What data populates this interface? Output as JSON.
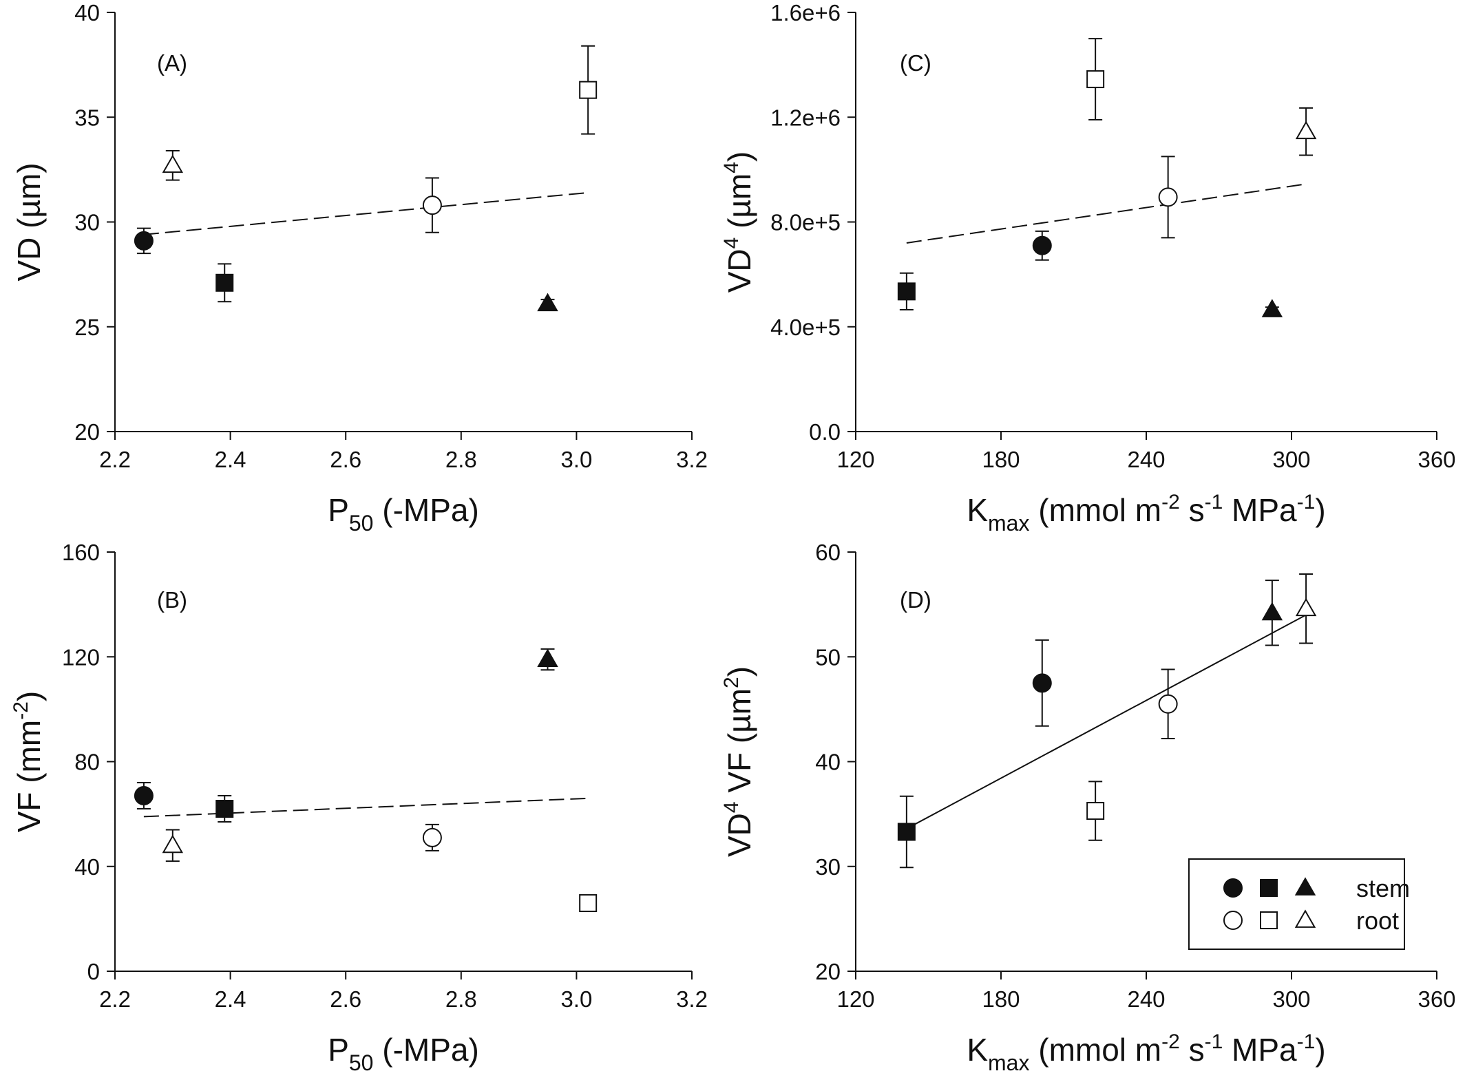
{
  "chart_data": [
    {
      "type": "scatter",
      "panel_label": "(A)",
      "xlabel": {
        "main": "P",
        "sub": "50",
        "rest": " (-MPa)"
      },
      "ylabel": "VD (µm)",
      "xlim": [
        2.2,
        3.2
      ],
      "ylim": [
        20,
        40
      ],
      "xticks": [
        "2.2",
        "2.4",
        "2.6",
        "2.8",
        "3.0",
        "3.2"
      ],
      "yticks": [
        "20",
        "25",
        "30",
        "35",
        "40"
      ],
      "points": [
        {
          "group": "stem",
          "marker": "circle",
          "x": 2.25,
          "y": 29.1,
          "err": 0.6
        },
        {
          "group": "stem",
          "marker": "square",
          "x": 2.39,
          "y": 27.1,
          "err": 0.9
        },
        {
          "group": "stem",
          "marker": "triangle",
          "x": 2.95,
          "y": 26.1,
          "err": 0.2
        },
        {
          "group": "root",
          "marker": "circle",
          "x": 2.75,
          "y": 30.8,
          "err": 1.3
        },
        {
          "group": "root",
          "marker": "square",
          "x": 3.02,
          "y": 36.3,
          "err": 2.1
        },
        {
          "group": "root",
          "marker": "triangle",
          "x": 2.3,
          "y": 32.7,
          "err": 0.7
        }
      ],
      "trendline": {
        "style": "dashed",
        "x": [
          2.25,
          3.02
        ],
        "y": [
          29.4,
          31.4
        ]
      }
    },
    {
      "type": "scatter",
      "panel_label": "(B)",
      "xlabel": {
        "main": "P",
        "sub": "50",
        "rest": " (-MPa)"
      },
      "ylabel": "VF (mm",
      "ylabel_sup": "-2",
      "ylabel_end": ")",
      "xlim": [
        2.2,
        3.2
      ],
      "ylim": [
        0,
        160
      ],
      "xticks": [
        "2.2",
        "2.4",
        "2.6",
        "2.8",
        "3.0",
        "3.2"
      ],
      "yticks": [
        "0",
        "40",
        "80",
        "120",
        "160"
      ],
      "points": [
        {
          "group": "stem",
          "marker": "circle",
          "x": 2.25,
          "y": 67,
          "err": 5
        },
        {
          "group": "stem",
          "marker": "square",
          "x": 2.39,
          "y": 62,
          "err": 5
        },
        {
          "group": "stem",
          "marker": "triangle",
          "x": 2.95,
          "y": 119,
          "err": 4
        },
        {
          "group": "root",
          "marker": "circle",
          "x": 2.75,
          "y": 51,
          "err": 5
        },
        {
          "group": "root",
          "marker": "square",
          "x": 3.02,
          "y": 26,
          "err": 0
        },
        {
          "group": "root",
          "marker": "triangle",
          "x": 2.3,
          "y": 48,
          "err": 6
        }
      ],
      "trendline": {
        "style": "dashed",
        "x": [
          2.25,
          3.02
        ],
        "y": [
          59,
          66
        ]
      }
    },
    {
      "type": "scatter",
      "panel_label": "(C)",
      "xlabel": {
        "main": "K",
        "sub": "max",
        "rest": " (mmol m",
        "sup1": "-2",
        "rest2": " s",
        "sup2": "-1",
        "rest3": " MPa",
        "sup3": "-1",
        "rest4": ")"
      },
      "ylabel": "VD",
      "ylabel_sup": "4",
      "ylabel_end": " (µm",
      "ylabel_sup2": "4",
      "ylabel_end2": ")",
      "xlim": [
        120,
        360
      ],
      "ylim": [
        0,
        1600000
      ],
      "xticks": [
        "120",
        "180",
        "240",
        "300",
        "360"
      ],
      "yticks": [
        "0.0",
        "4.0e+5",
        "8.0e+5",
        "1.2e+6",
        "1.6e+6"
      ],
      "points": [
        {
          "group": "stem",
          "marker": "circle",
          "x": 197,
          "y": 710000,
          "err": 55000
        },
        {
          "group": "stem",
          "marker": "square",
          "x": 141,
          "y": 535000,
          "err": 70000
        },
        {
          "group": "stem",
          "marker": "triangle",
          "x": 292,
          "y": 465000,
          "err": 10000
        },
        {
          "group": "root",
          "marker": "circle",
          "x": 249,
          "y": 895000,
          "err": 155000
        },
        {
          "group": "root",
          "marker": "square",
          "x": 219,
          "y": 1345000,
          "err": 155000
        },
        {
          "group": "root",
          "marker": "triangle",
          "x": 306,
          "y": 1145000,
          "err": 90000
        }
      ],
      "trendline": {
        "style": "dashed",
        "x": [
          141,
          306
        ],
        "y": [
          720000,
          945000
        ]
      }
    },
    {
      "type": "scatter",
      "panel_label": "(D)",
      "xlabel": {
        "main": "K",
        "sub": "max",
        "rest": " (mmol m",
        "sup1": "-2",
        "rest2": " s",
        "sup2": "-1",
        "rest3": " MPa",
        "sup3": "-1",
        "rest4": ")"
      },
      "ylabel": "VD",
      "ylabel_sup": "4",
      "ylabel_end": " VF (µm",
      "ylabel_sup2": "2",
      "ylabel_end2": ")",
      "xlim": [
        120,
        360
      ],
      "ylim": [
        20,
        60
      ],
      "xticks": [
        "120",
        "180",
        "240",
        "300",
        "360"
      ],
      "yticks": [
        "20",
        "30",
        "40",
        "50",
        "60"
      ],
      "points": [
        {
          "group": "stem",
          "marker": "circle",
          "x": 197,
          "y": 47.5,
          "err": 4.1
        },
        {
          "group": "stem",
          "marker": "square",
          "x": 141,
          "y": 33.3,
          "err": 3.4
        },
        {
          "group": "stem",
          "marker": "triangle",
          "x": 292,
          "y": 54.2,
          "err": 3.1
        },
        {
          "group": "root",
          "marker": "circle",
          "x": 249,
          "y": 45.5,
          "err": 3.3
        },
        {
          "group": "root",
          "marker": "square",
          "x": 219,
          "y": 35.3,
          "err": 2.8
        },
        {
          "group": "root",
          "marker": "triangle",
          "x": 306,
          "y": 54.6,
          "err": 3.3
        }
      ],
      "trendline": {
        "style": "solid",
        "x": [
          141,
          306
        ],
        "y": [
          33.6,
          54.0
        ]
      }
    }
  ],
  "legend": {
    "placement": "bottom-right of panel D",
    "entries": [
      {
        "label": "stem",
        "fill": "filled"
      },
      {
        "label": "root",
        "fill": "open"
      }
    ]
  }
}
